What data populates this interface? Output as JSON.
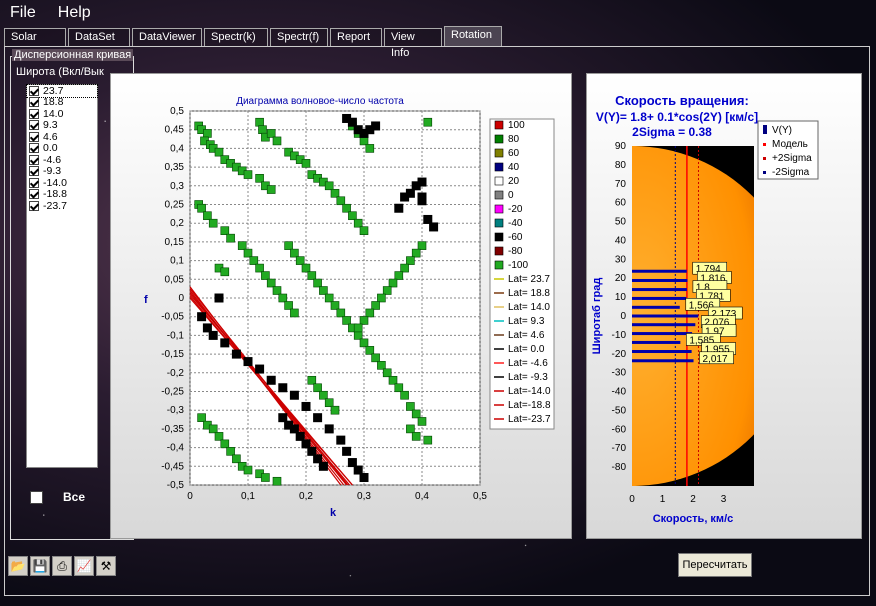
{
  "menu": {
    "file": "File",
    "help": "Help"
  },
  "tabs": [
    "Solar",
    "DataSet",
    "DataViewer",
    "Spectr(k)",
    "Spectr(f)",
    "Report",
    "View Info",
    "Rotation"
  ],
  "active_tab": "Rotation",
  "group_title": "Дисперсионная кривая",
  "lat_title": "Широта (Вкл/Вык",
  "latitudes": [
    "23.7",
    "18.8",
    "14.0",
    "9.3",
    "4.6",
    "0.0",
    "-4.6",
    "-9.3",
    "-14.0",
    "-18.8",
    "-23.7"
  ],
  "all_label": "Все",
  "toolbar_icons": [
    "open-icon",
    "save-icon",
    "print-icon",
    "chart-icon",
    "tools-icon"
  ],
  "recalc_label": "Пересчитать",
  "chart_data": [
    {
      "type": "scatter",
      "title": "Диаграмма волновое-число частота",
      "xlabel": "k",
      "ylabel": "f",
      "xlim": [
        0,
        0.5
      ],
      "ylim": [
        -0.5,
        0.5
      ],
      "grid": true,
      "legend": "right",
      "xticks": [
        "0",
        "0,1",
        "0,2",
        "0,3",
        "0,4",
        "0,5"
      ],
      "yticks": [
        "0,5",
        "0,45",
        "0,4",
        "0,35",
        "0,3",
        "0,25",
        "0,2",
        "0,15",
        "0,1",
        "0,05",
        "0",
        "-0,05",
        "-0,1",
        "-0,15",
        "-0,2",
        "-0,25",
        "-0,3",
        "-0,35",
        "-0,4",
        "-0,45",
        "-0,5"
      ],
      "legend_power": [
        {
          "name": "100",
          "color": "#cc0000"
        },
        {
          "name": "80",
          "color": "#008000"
        },
        {
          "name": "60",
          "color": "#808000"
        },
        {
          "name": "40",
          "color": "#000080"
        },
        {
          "name": "20",
          "color": "#ffffff"
        },
        {
          "name": "0",
          "color": "#808080"
        },
        {
          "name": "-20",
          "color": "#ff00ff"
        },
        {
          "name": "-40",
          "color": "#008080"
        },
        {
          "name": "-60",
          "color": "#000000"
        },
        {
          "name": "-80",
          "color": "#800000"
        },
        {
          "name": "-100",
          "color": "#22aa22"
        }
      ],
      "legend_lat": [
        {
          "name": "Lat= 23.7",
          "color": "#c8c800"
        },
        {
          "name": "Lat= 18.8",
          "color": "#7a3a10"
        },
        {
          "name": "Lat= 14.0",
          "color": "#e0c060"
        },
        {
          "name": "Lat=  9.3",
          "color": "#00c0c0"
        },
        {
          "name": "Lat=  4.6",
          "color": "#6a3a1a"
        },
        {
          "name": "Lat=  0.0",
          "color": "#000000"
        },
        {
          "name": "Lat= -4.6",
          "color": "#ff2020"
        },
        {
          "name": "Lat= -9.3",
          "color": "#000000"
        },
        {
          "name": "Lat=-14.0",
          "color": "#cc0000"
        },
        {
          "name": "Lat=-18.8",
          "color": "#cc0000"
        },
        {
          "name": "Lat=-23.7",
          "color": "#cc0000"
        }
      ],
      "green_points": [
        [
          0.015,
          0.46
        ],
        [
          0.02,
          0.45
        ],
        [
          0.03,
          0.44
        ],
        [
          0.025,
          0.42
        ],
        [
          0.035,
          0.41
        ],
        [
          0.04,
          0.4
        ],
        [
          0.05,
          0.39
        ],
        [
          0.06,
          0.37
        ],
        [
          0.07,
          0.36
        ],
        [
          0.08,
          0.35
        ],
        [
          0.09,
          0.34
        ],
        [
          0.1,
          0.33
        ],
        [
          0.12,
          0.32
        ],
        [
          0.13,
          0.3
        ],
        [
          0.14,
          0.29
        ],
        [
          0.015,
          0.25
        ],
        [
          0.02,
          0.24
        ],
        [
          0.03,
          0.22
        ],
        [
          0.04,
          0.2
        ],
        [
          0.06,
          0.18
        ],
        [
          0.07,
          0.16
        ],
        [
          0.09,
          0.14
        ],
        [
          0.1,
          0.12
        ],
        [
          0.11,
          0.1
        ],
        [
          0.12,
          0.08
        ],
        [
          0.13,
          0.06
        ],
        [
          0.14,
          0.04
        ],
        [
          0.15,
          0.02
        ],
        [
          0.16,
          0.0
        ],
        [
          0.17,
          -0.02
        ],
        [
          0.18,
          -0.04
        ],
        [
          0.12,
          0.47
        ],
        [
          0.125,
          0.45
        ],
        [
          0.13,
          0.43
        ],
        [
          0.14,
          0.44
        ],
        [
          0.15,
          0.42
        ],
        [
          0.17,
          0.39
        ],
        [
          0.18,
          0.38
        ],
        [
          0.19,
          0.37
        ],
        [
          0.2,
          0.36
        ],
        [
          0.21,
          0.33
        ],
        [
          0.22,
          0.32
        ],
        [
          0.23,
          0.31
        ],
        [
          0.24,
          0.3
        ],
        [
          0.25,
          0.28
        ],
        [
          0.26,
          0.26
        ],
        [
          0.27,
          0.24
        ],
        [
          0.28,
          0.22
        ],
        [
          0.29,
          0.2
        ],
        [
          0.3,
          0.18
        ],
        [
          0.17,
          0.14
        ],
        [
          0.18,
          0.12
        ],
        [
          0.19,
          0.1
        ],
        [
          0.2,
          0.08
        ],
        [
          0.21,
          0.06
        ],
        [
          0.22,
          0.04
        ],
        [
          0.23,
          0.02
        ],
        [
          0.24,
          0.0
        ],
        [
          0.25,
          -0.02
        ],
        [
          0.26,
          -0.04
        ],
        [
          0.27,
          -0.06
        ],
        [
          0.28,
          -0.08
        ],
        [
          0.29,
          -0.1
        ],
        [
          0.3,
          -0.12
        ],
        [
          0.31,
          -0.14
        ],
        [
          0.32,
          -0.16
        ],
        [
          0.33,
          -0.18
        ],
        [
          0.34,
          -0.2
        ],
        [
          0.35,
          -0.22
        ],
        [
          0.36,
          -0.24
        ],
        [
          0.37,
          -0.26
        ],
        [
          0.38,
          -0.29
        ],
        [
          0.39,
          -0.31
        ],
        [
          0.4,
          -0.33
        ],
        [
          0.38,
          -0.35
        ],
        [
          0.39,
          -0.37
        ],
        [
          0.41,
          -0.38
        ],
        [
          0.28,
          0.46
        ],
        [
          0.29,
          0.44
        ],
        [
          0.3,
          0.42
        ],
        [
          0.31,
          0.4
        ],
        [
          0.41,
          0.47
        ],
        [
          0.4,
          0.14
        ],
        [
          0.39,
          0.12
        ],
        [
          0.38,
          0.1
        ],
        [
          0.37,
          0.08
        ],
        [
          0.36,
          0.06
        ],
        [
          0.35,
          0.04
        ],
        [
          0.34,
          0.02
        ],
        [
          0.33,
          0.0
        ],
        [
          0.32,
          -0.02
        ],
        [
          0.31,
          -0.04
        ],
        [
          0.3,
          -0.06
        ],
        [
          0.29,
          -0.08
        ],
        [
          0.02,
          -0.32
        ],
        [
          0.03,
          -0.34
        ],
        [
          0.04,
          -0.35
        ],
        [
          0.05,
          -0.37
        ],
        [
          0.06,
          -0.39
        ],
        [
          0.07,
          -0.41
        ],
        [
          0.08,
          -0.43
        ],
        [
          0.09,
          -0.45
        ],
        [
          0.1,
          -0.46
        ],
        [
          0.12,
          -0.47
        ],
        [
          0.13,
          -0.48
        ],
        [
          0.15,
          -0.49
        ],
        [
          0.05,
          0.08
        ],
        [
          0.06,
          0.07
        ],
        [
          0.21,
          -0.22
        ],
        [
          0.22,
          -0.24
        ],
        [
          0.23,
          -0.26
        ],
        [
          0.24,
          -0.28
        ],
        [
          0.25,
          -0.3
        ]
      ],
      "black_points": [
        [
          0.27,
          0.48
        ],
        [
          0.28,
          0.47
        ],
        [
          0.29,
          0.45
        ],
        [
          0.3,
          0.44
        ],
        [
          0.31,
          0.45
        ],
        [
          0.32,
          0.46
        ],
        [
          0.36,
          0.24
        ],
        [
          0.37,
          0.27
        ],
        [
          0.38,
          0.28
        ],
        [
          0.39,
          0.3
        ],
        [
          0.4,
          0.31
        ],
        [
          0.4,
          0.27
        ],
        [
          0.4,
          0.26
        ],
        [
          0.41,
          0.21
        ],
        [
          0.42,
          0.19
        ],
        [
          0.05,
          0.0
        ],
        [
          0.02,
          -0.05
        ],
        [
          0.03,
          -0.08
        ],
        [
          0.04,
          -0.1
        ],
        [
          0.06,
          -0.12
        ],
        [
          0.08,
          -0.15
        ],
        [
          0.1,
          -0.17
        ],
        [
          0.12,
          -0.19
        ],
        [
          0.14,
          -0.22
        ],
        [
          0.16,
          -0.24
        ],
        [
          0.18,
          -0.26
        ],
        [
          0.2,
          -0.29
        ],
        [
          0.22,
          -0.32
        ],
        [
          0.24,
          -0.35
        ],
        [
          0.26,
          -0.38
        ],
        [
          0.27,
          -0.41
        ],
        [
          0.28,
          -0.44
        ],
        [
          0.29,
          -0.46
        ],
        [
          0.3,
          -0.48
        ],
        [
          0.16,
          -0.32
        ],
        [
          0.17,
          -0.34
        ],
        [
          0.18,
          -0.35
        ],
        [
          0.19,
          -0.37
        ],
        [
          0.2,
          -0.39
        ],
        [
          0.21,
          -0.41
        ],
        [
          0.22,
          -0.43
        ],
        [
          0.23,
          -0.45
        ]
      ]
    },
    {
      "type": "line",
      "title": "Скорость вращения:",
      "subtitle": "V(Y)= 1.8+ 0.1*cos(2Y) [км/с]",
      "subtitle2": "2Sigma = 0.38",
      "xlabel": "Скорость, км/с",
      "ylabel": "Широтаб град",
      "xlim": [
        0,
        4
      ],
      "ylim": [
        -90,
        90
      ],
      "xticks": [
        "0",
        "1",
        "2",
        "3"
      ],
      "yticks": [
        "90",
        "80",
        "70",
        "60",
        "50",
        "40",
        "30",
        "20",
        "10",
        "0",
        "-10",
        "-20",
        "-30",
        "-40",
        "-50",
        "-60",
        "-70",
        "-80"
      ],
      "legend": [
        {
          "name": "V(Y)",
          "color": "#000080"
        },
        {
          "name": "Модель",
          "color": "#ff0000"
        },
        {
          "name": "+2Sigma",
          "color": "#cc0000"
        },
        {
          "name": "-2Sigma",
          "color": "#000080"
        }
      ],
      "model": 1.8,
      "sigma_plus": 2.18,
      "sigma_minus": 1.42,
      "bars": [
        {
          "lat": 23.7,
          "v": 1.794
        },
        {
          "lat": 18.8,
          "v": 1.816
        },
        {
          "lat": 14.0,
          "v": 1.8
        },
        {
          "lat": 9.3,
          "v": 1.781
        },
        {
          "lat": 4.6,
          "v": 1.566
        },
        {
          "lat": 0.0,
          "v": 2.173
        },
        {
          "lat": -4.6,
          "v": 2.076
        },
        {
          "lat": -9.3,
          "v": 1.97
        },
        {
          "lat": -14.0,
          "v": 1.585
        },
        {
          "lat": -18.8,
          "v": 1.955
        },
        {
          "lat": -23.7,
          "v": 2.017
        }
      ],
      "labels": [
        "1,794",
        "1,816",
        "1,8",
        "1,781",
        "1,566",
        "2,173",
        "2,076",
        "1,97",
        "1,585",
        "1,955",
        "2,017"
      ]
    }
  ]
}
